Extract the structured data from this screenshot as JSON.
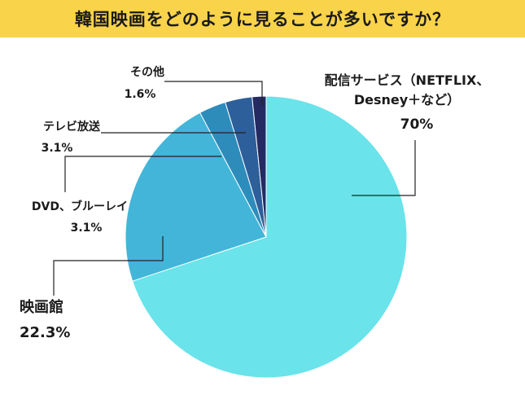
{
  "title": "韓国映画をどのように見ることが多いですか？",
  "colors": {
    "title_bg": "#f9d34a",
    "leader_line": "#222222"
  },
  "chart_data": {
    "type": "pie",
    "title": "韓国映画をどのように見ることが多いですか？",
    "start": "12 o'clock, clockwise",
    "slices": [
      {
        "label": "配信サービス（NETFLIX、Desney＋など）",
        "label_lines": [
          "配信サービス（NETFLIX、",
          "Desney＋など）"
        ],
        "value": 70,
        "value_label": "70%",
        "color": "#6ae3ea"
      },
      {
        "label": "映画館",
        "label_lines": [
          "映画館"
        ],
        "value": 22.3,
        "value_label": "22.3%",
        "color": "#43b5d9"
      },
      {
        "label": "DVD、ブルーレイ",
        "label_lines": [
          "DVD、ブルーレイ"
        ],
        "value": 3.1,
        "value_label": "3.1%",
        "color": "#2e8cbb"
      },
      {
        "label": "テレビ放送",
        "label_lines": [
          "テレビ放送"
        ],
        "value": 3.1,
        "value_label": "3.1%",
        "color": "#2d5f9a"
      },
      {
        "label": "その他",
        "label_lines": [
          "その他"
        ],
        "value": 1.6,
        "value_label": "1.6%",
        "color": "#252a62"
      }
    ]
  }
}
